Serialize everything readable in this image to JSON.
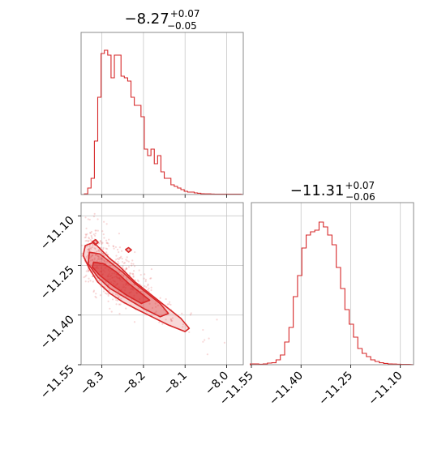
{
  "chart_data": [
    {
      "type": "histogram",
      "panel": "marginal-param1",
      "title": {
        "main": "−8.27",
        "sup": "+0.07",
        "sub": "−0.05"
      },
      "xlim": [
        -8.35,
        -7.96
      ],
      "grid": true,
      "color": "#d62728",
      "bins": [
        [
          -8.338,
          0.004
        ],
        [
          -8.33,
          0.04
        ],
        [
          -8.322,
          0.1
        ],
        [
          -8.314,
          0.33
        ],
        [
          -8.306,
          0.6
        ],
        [
          -8.298,
          0.87
        ],
        [
          -8.29,
          0.89
        ],
        [
          -8.282,
          0.86
        ],
        [
          -8.274,
          0.72
        ],
        [
          -8.266,
          0.86
        ],
        [
          -8.258,
          0.86
        ],
        [
          -8.25,
          0.73
        ],
        [
          -8.242,
          0.72
        ],
        [
          -8.234,
          0.7
        ],
        [
          -8.226,
          0.6
        ],
        [
          -8.218,
          0.55
        ],
        [
          -8.21,
          0.55
        ],
        [
          -8.202,
          0.48
        ],
        [
          -8.194,
          0.28
        ],
        [
          -8.186,
          0.24
        ],
        [
          -8.178,
          0.28
        ],
        [
          -8.17,
          0.19
        ],
        [
          -8.162,
          0.24
        ],
        [
          -8.154,
          0.14
        ],
        [
          -8.146,
          0.1
        ],
        [
          -8.138,
          0.1
        ],
        [
          -8.13,
          0.06
        ],
        [
          -8.122,
          0.05
        ],
        [
          -8.114,
          0.04
        ],
        [
          -8.106,
          0.03
        ],
        [
          -8.098,
          0.02
        ],
        [
          -8.09,
          0.015
        ],
        [
          -8.082,
          0.015
        ],
        [
          -8.074,
          0.01
        ],
        [
          -8.066,
          0.008
        ],
        [
          -8.058,
          0.005
        ],
        [
          -8.05,
          0.004
        ],
        [
          -8.042,
          0.004
        ],
        [
          -8.034,
          0.003
        ],
        [
          -8.026,
          0.002
        ],
        [
          -8.018,
          0.002
        ],
        [
          -8.01,
          0.002
        ],
        [
          -7.97,
          0.002
        ]
      ]
    },
    {
      "type": "histogram",
      "panel": "marginal-param2",
      "title": {
        "main": "−11.31",
        "sup": "+0.07",
        "sub": "−0.06"
      },
      "xlim": [
        -11.55,
        -11.06
      ],
      "xticks": [
        "−11.55",
        "−11.40",
        "−11.25",
        "−11.10"
      ],
      "xtick_values": [
        -11.55,
        -11.4,
        -11.25,
        -11.1
      ],
      "grid": true,
      "color": "#d62728",
      "bins": [
        [
          -11.547,
          0.005
        ],
        [
          -11.534,
          0.005
        ],
        [
          -11.521,
          0.003
        ],
        [
          -11.508,
          0.005
        ],
        [
          -11.495,
          0.01
        ],
        [
          -11.482,
          0.012
        ],
        [
          -11.469,
          0.03
        ],
        [
          -11.456,
          0.06
        ],
        [
          -11.443,
          0.14
        ],
        [
          -11.43,
          0.23
        ],
        [
          -11.417,
          0.42
        ],
        [
          -11.404,
          0.55
        ],
        [
          -11.391,
          0.72
        ],
        [
          -11.378,
          0.8
        ],
        [
          -11.365,
          0.82
        ],
        [
          -11.352,
          0.83
        ],
        [
          -11.339,
          0.88
        ],
        [
          -11.326,
          0.85
        ],
        [
          -11.313,
          0.8
        ],
        [
          -11.3,
          0.74
        ],
        [
          -11.287,
          0.6
        ],
        [
          -11.274,
          0.47
        ],
        [
          -11.261,
          0.34
        ],
        [
          -11.248,
          0.25
        ],
        [
          -11.235,
          0.17
        ],
        [
          -11.222,
          0.1
        ],
        [
          -11.209,
          0.07
        ],
        [
          -11.196,
          0.05
        ],
        [
          -11.183,
          0.03
        ],
        [
          -11.17,
          0.02
        ],
        [
          -11.157,
          0.012
        ],
        [
          -11.144,
          0.008
        ],
        [
          -11.131,
          0.005
        ],
        [
          -11.118,
          0.004
        ],
        [
          -11.105,
          0.003
        ],
        [
          -11.092,
          0.002
        ],
        [
          -11.079,
          0.002
        ]
      ]
    },
    {
      "type": "scatter-contour",
      "panel": "joint",
      "xlim": [
        -8.35,
        -7.96
      ],
      "ylim": [
        -11.55,
        -11.06
      ],
      "xticks": [
        "−8.3",
        "−8.2",
        "−8.1",
        "−8.0"
      ],
      "xtick_values": [
        -8.3,
        -8.2,
        -8.1,
        -8.0
      ],
      "yticks": [
        "−11.10",
        "−11.25",
        "−11.40",
        "−11.55"
      ],
      "ytick_values": [
        -11.1,
        -11.25,
        -11.4,
        -11.55
      ],
      "grid": true,
      "color": "#d62728",
      "ridge_start": [
        -8.34,
        -11.22
      ],
      "ridge_end": [
        -8.08,
        -11.45
      ],
      "contours": [
        {
          "level": "outer",
          "fill": 0.18,
          "points": [
            [
              -8.34,
              -11.19
            ],
            [
              -8.32,
              -11.18
            ],
            [
              -8.3,
              -11.205
            ],
            [
              -8.28,
              -11.23
            ],
            [
              -8.26,
              -11.25
            ],
            [
              -8.24,
              -11.275
            ],
            [
              -8.22,
              -11.3
            ],
            [
              -8.2,
              -11.32
            ],
            [
              -8.17,
              -11.35
            ],
            [
              -8.14,
              -11.38
            ],
            [
              -8.11,
              -11.41
            ],
            [
              -8.09,
              -11.44
            ],
            [
              -8.1,
              -11.45
            ],
            [
              -8.14,
              -11.43
            ],
            [
              -8.18,
              -11.405
            ],
            [
              -8.22,
              -11.38
            ],
            [
              -8.25,
              -11.36
            ],
            [
              -8.28,
              -11.335
            ],
            [
              -8.31,
              -11.3
            ],
            [
              -8.33,
              -11.26
            ],
            [
              -8.345,
              -11.22
            ]
          ]
        },
        {
          "level": "middle",
          "fill": 0.35,
          "points": [
            [
              -8.33,
              -11.21
            ],
            [
              -8.305,
              -11.215
            ],
            [
              -8.28,
              -11.24
            ],
            [
              -8.25,
              -11.27
            ],
            [
              -8.22,
              -11.305
            ],
            [
              -8.19,
              -11.335
            ],
            [
              -8.16,
              -11.365
            ],
            [
              -8.14,
              -11.395
            ],
            [
              -8.16,
              -11.405
            ],
            [
              -8.2,
              -11.38
            ],
            [
              -8.24,
              -11.35
            ],
            [
              -8.28,
              -11.32
            ],
            [
              -8.31,
              -11.285
            ],
            [
              -8.333,
              -11.245
            ]
          ]
        },
        {
          "level": "inner",
          "fill": 0.55,
          "points": [
            [
              -8.32,
              -11.24
            ],
            [
              -8.295,
              -11.245
            ],
            [
              -8.265,
              -11.27
            ],
            [
              -8.235,
              -11.305
            ],
            [
              -8.205,
              -11.335
            ],
            [
              -8.185,
              -11.355
            ],
            [
              -8.205,
              -11.365
            ],
            [
              -8.24,
              -11.34
            ],
            [
              -8.275,
              -11.31
            ],
            [
              -8.305,
              -11.28
            ],
            [
              -8.323,
              -11.255
            ]
          ]
        },
        {
          "level": "blob-a",
          "fill": 0.35,
          "points": [
            [
              -8.323,
              -11.178
            ],
            [
              -8.315,
              -11.172
            ],
            [
              -8.309,
              -11.18
            ],
            [
              -8.316,
              -11.188
            ]
          ]
        },
        {
          "level": "blob-b",
          "fill": 0.35,
          "points": [
            [
              -8.243,
              -11.202
            ],
            [
              -8.236,
              -11.196
            ],
            [
              -8.229,
              -11.203
            ],
            [
              -8.236,
              -11.21
            ]
          ]
        }
      ]
    }
  ]
}
